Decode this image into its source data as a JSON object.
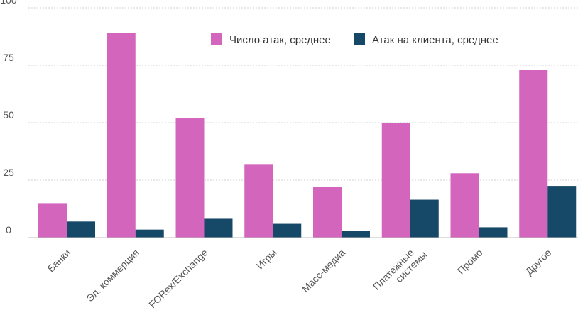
{
  "chart_data": {
    "type": "bar",
    "title": "",
    "xlabel": "",
    "ylabel": "",
    "ylim": [
      0,
      100
    ],
    "yticks": [
      0,
      25,
      50,
      75,
      100
    ],
    "grid": true,
    "legend_position": "top-right",
    "categories": [
      [
        "Банки"
      ],
      [
        "Эл. коммерция"
      ],
      [
        "FORex/Exchange"
      ],
      [
        "Игры"
      ],
      [
        "Масс-медиа"
      ],
      [
        "Платежные",
        "системы"
      ],
      [
        "Промо"
      ],
      [
        "Другое"
      ]
    ],
    "series": [
      {
        "name": "Число атак, среднее",
        "color": "#d465bd",
        "values": [
          15,
          89,
          52,
          32,
          22,
          50,
          28,
          73
        ]
      },
      {
        "name": "Атак на клиента, среднее",
        "color": "#164868",
        "values": [
          7,
          3.5,
          8.5,
          6,
          3,
          16.5,
          4.5,
          22.5
        ]
      }
    ]
  }
}
